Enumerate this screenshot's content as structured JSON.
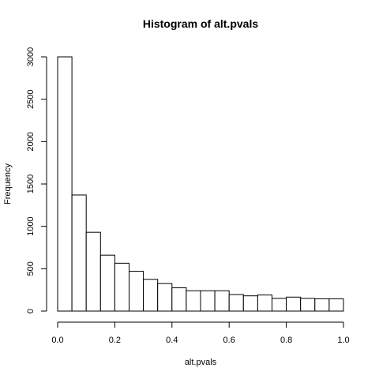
{
  "chart_data": {
    "type": "bar",
    "title": "Histogram of alt.pvals",
    "xlabel": "alt.pvals",
    "ylabel": "Frequency",
    "bin_edges": [
      0.0,
      0.05,
      0.1,
      0.15,
      0.2,
      0.25,
      0.3,
      0.35,
      0.4,
      0.45,
      0.5,
      0.55,
      0.6,
      0.65,
      0.7,
      0.75,
      0.8,
      0.85,
      0.9,
      0.95,
      1.0
    ],
    "values": [
      3000,
      1370,
      930,
      660,
      565,
      470,
      375,
      325,
      275,
      240,
      240,
      240,
      195,
      180,
      190,
      150,
      165,
      150,
      145,
      145
    ],
    "xlim": [
      0,
      1
    ],
    "ylim": [
      0,
      3000
    ],
    "x_ticks": [
      0.0,
      0.2,
      0.4,
      0.6,
      0.8,
      1.0
    ],
    "x_tick_labels": [
      "0.0",
      "0.2",
      "0.4",
      "0.6",
      "0.8",
      "1.0"
    ],
    "y_ticks": [
      0,
      500,
      1000,
      1500,
      2000,
      2500,
      3000
    ],
    "y_tick_labels": [
      "0",
      "500",
      "1000",
      "1500",
      "2000",
      "2500",
      "3000"
    ],
    "grid": false,
    "legend": "none",
    "colors": {
      "bar_fill": "#ffffff",
      "bar_stroke": "#000000"
    }
  }
}
